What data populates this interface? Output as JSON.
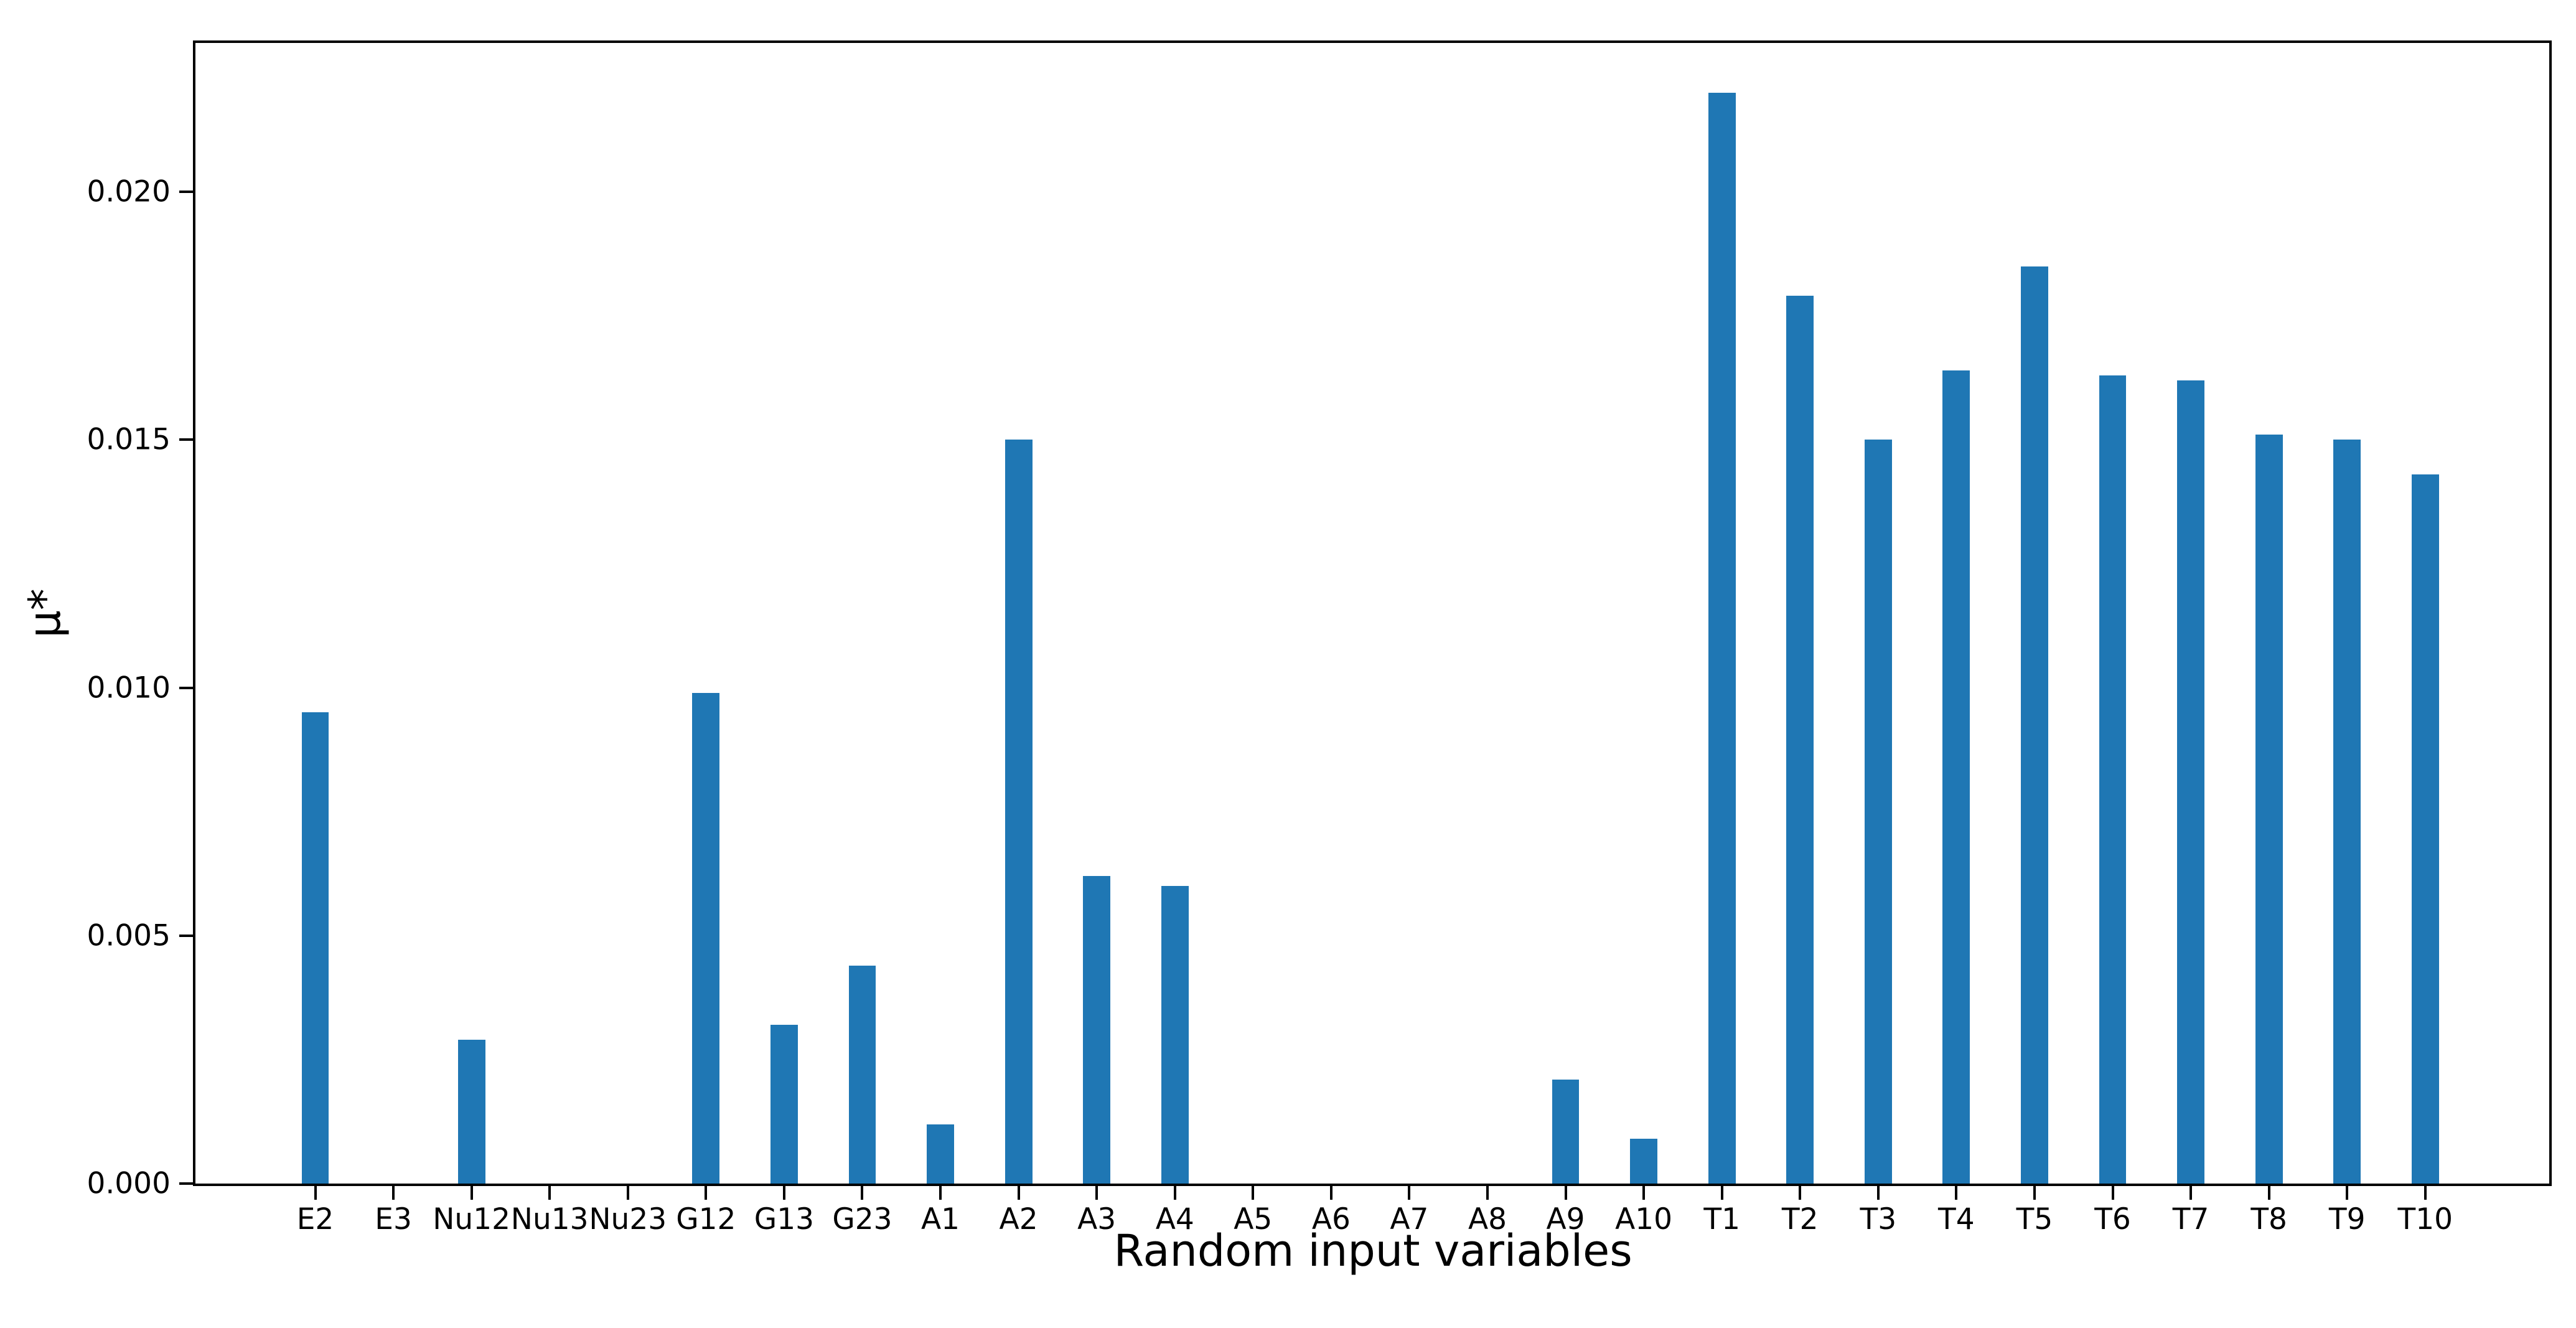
{
  "figure": {
    "background": "#ffffff",
    "axis_color": "#000000",
    "text_color": "#000000"
  },
  "chart_data": {
    "type": "bar",
    "title": "",
    "xlabel": "Random input variables",
    "ylabel": "μ*",
    "categories": [
      "E2",
      "E3",
      "Nu12",
      "Nu13",
      "Nu23",
      "G12",
      "G13",
      "G23",
      "A1",
      "A2",
      "A3",
      "A4",
      "A5",
      "A6",
      "A7",
      "A8",
      "A9",
      "A10",
      "T1",
      "T2",
      "T3",
      "T4",
      "T5",
      "T6",
      "T7",
      "T8",
      "T9",
      "T10"
    ],
    "values": [
      0.0095,
      0,
      0.0029,
      0,
      0,
      0.0099,
      0.0032,
      0.0044,
      0.0012,
      0.015,
      0.0062,
      0.006,
      0,
      0,
      0,
      0,
      0.0021,
      0.0009,
      0.022,
      0.0179,
      0.015,
      0.0164,
      0.0185,
      0.0163,
      0.0162,
      0.0151,
      0.015,
      0.0143
    ],
    "ytick_labels": [
      "0.000",
      "0.005",
      "0.010",
      "0.015",
      "0.020"
    ],
    "ytick_values": [
      0.0,
      0.005,
      0.01,
      0.015,
      0.02
    ],
    "ylim": [
      0,
      0.023
    ],
    "bar_color": "#1f77b4",
    "grid": false,
    "legend_position": "none",
    "layout": {
      "first_bar_center_frac": 0.0509,
      "bar_spacing_frac": 0.0332,
      "bar_width_frac": 0.0116
    }
  }
}
